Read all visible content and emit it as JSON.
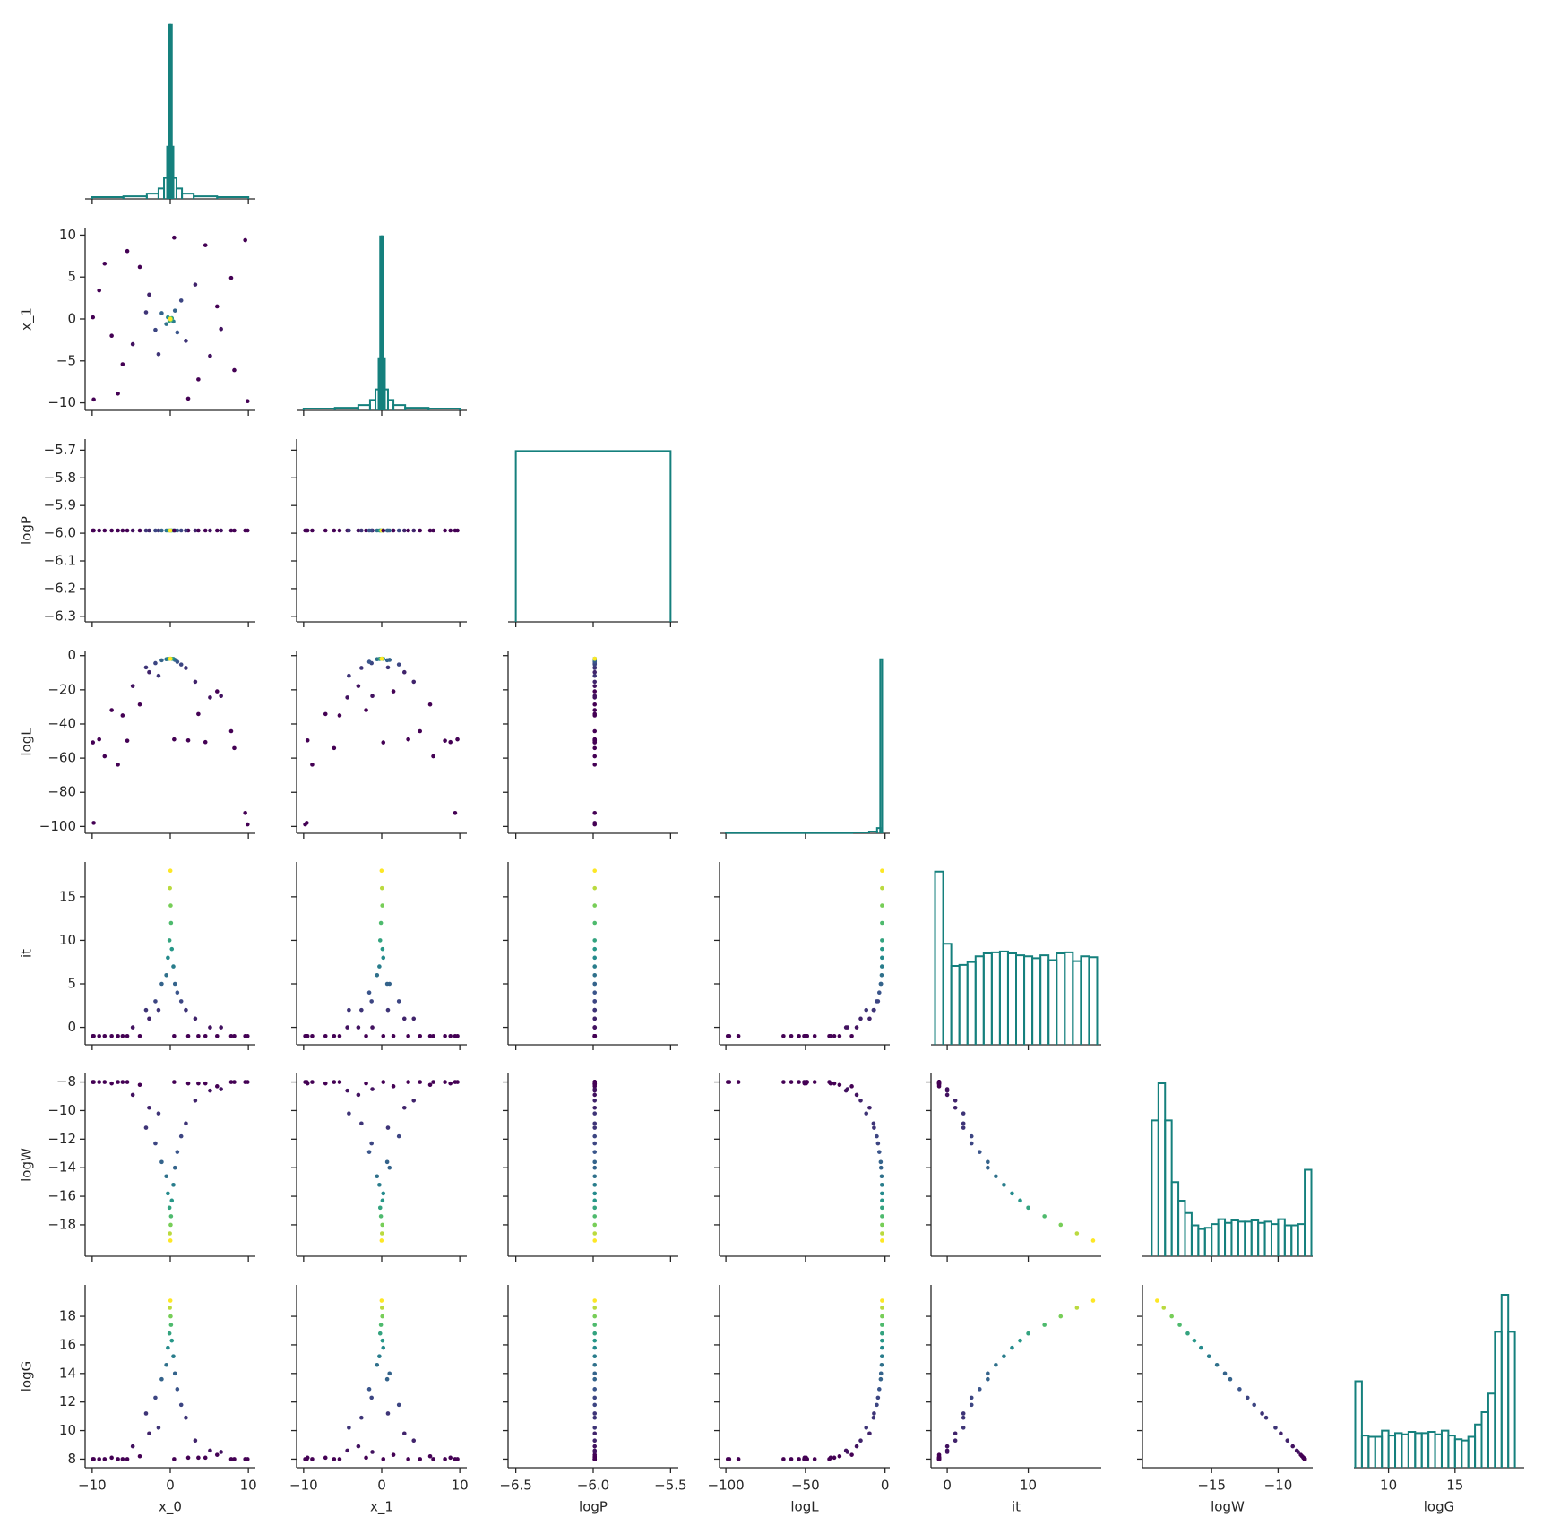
{
  "chart_data": {
    "type": "pairplot",
    "color_by": "it",
    "colormap": [
      "#440154",
      "#3b528b",
      "#21918c",
      "#5ec962",
      "#fde725"
    ],
    "hist_color": "#15807d",
    "variables": [
      {
        "name": "x_0",
        "lim": [
          -10.9,
          10.9
        ],
        "xticks": [
          {
            "value": -10,
            "label": "−10"
          },
          0,
          10
        ],
        "yticks": [
          {
            "value": -10,
            "label": "−10"
          },
          {
            "value": -5,
            "label": "−5"
          },
          0,
          5,
          10
        ],
        "values": [
          8.2,
          -9.1,
          4.5,
          -6.7,
          9.6,
          -9.8,
          2.3,
          -3.9,
          6.0,
          -7.5,
          5.1,
          -4.8,
          3.2,
          -2.7,
          6.5,
          -1.5,
          2.0,
          -3.1,
          1.4,
          -1.9,
          0.9,
          -1.1,
          0.6,
          -0.5,
          0.4,
          -0.3,
          0.2,
          -0.1,
          0.1,
          0.05,
          -0.04,
          0.02,
          7.8,
          -5.5,
          0.5,
          -9.9,
          9.9,
          -8.4,
          3.6,
          -6.1
        ],
        "hist": {
          "bins": [
            -10,
            -6,
            -3,
            -1.5,
            -0.8,
            -0.4,
            -0.2,
            0,
            0.2,
            0.4,
            0.8,
            1.5,
            3,
            6,
            10
          ],
          "counts": [
            1,
            1.5,
            3,
            6,
            12,
            30,
            100,
            100,
            30,
            12,
            6,
            3,
            1.5,
            1
          ],
          "ylim": [
            0,
            105
          ]
        }
      },
      {
        "name": "x_1",
        "lim": [
          -10.9,
          10.9
        ],
        "xticks": [
          {
            "value": -10,
            "label": "−10"
          },
          0,
          10
        ],
        "yticks": [
          {
            "value": -10,
            "label": "−10"
          },
          {
            "value": -5,
            "label": "−5"
          },
          0,
          5,
          10
        ],
        "values": [
          -6.1,
          3.4,
          8.8,
          -8.9,
          9.4,
          -9.6,
          -9.5,
          6.2,
          1.5,
          -2.0,
          -4.4,
          -3.0,
          4.1,
          2.9,
          -1.2,
          -4.2,
          -2.6,
          0.8,
          2.2,
          -1.3,
          -1.6,
          0.7,
          1.0,
          -0.6,
          -0.3,
          0.2,
          0.1,
          -0.2,
          -0.1,
          0.08,
          0.03,
          -0.02,
          4.9,
          8.1,
          9.7,
          0.2,
          -9.8,
          6.6,
          -7.2,
          -5.4
        ],
        "hist": {
          "bins": [
            -10,
            -6,
            -3,
            -1.5,
            -0.8,
            -0.4,
            -0.2,
            0,
            0.2,
            0.4,
            0.8,
            1.5,
            3,
            6,
            10
          ],
          "counts": [
            1,
            1.5,
            3,
            6,
            12,
            30,
            100,
            100,
            30,
            12,
            6,
            3,
            1.5,
            1
          ],
          "ylim": [
            0,
            105
          ]
        }
      },
      {
        "name": "logP",
        "lim": [
          -6.55,
          -5.45
        ],
        "ylim": [
          -6.32,
          -5.66
        ],
        "xticks": [
          {
            "value": -6.5,
            "label": "−6.5"
          },
          {
            "value": -6.0,
            "label": "−6.0"
          },
          {
            "value": -5.5,
            "label": "−5.5"
          }
        ],
        "yticks": [
          {
            "value": -6.3,
            "label": "−6.3"
          },
          {
            "value": -6.2,
            "label": "−6.2"
          },
          {
            "value": -6.1,
            "label": "−6.1"
          },
          {
            "value": -6.0,
            "label": "−6.0"
          },
          {
            "value": -5.9,
            "label": "−5.9"
          },
          {
            "value": -5.8,
            "label": "−5.8"
          },
          {
            "value": -5.7,
            "label": "−5.7"
          }
        ],
        "values": [
          -5.99,
          -5.99,
          -5.99,
          -5.99,
          -5.99,
          -5.99,
          -5.99,
          -5.99,
          -5.99,
          -5.99,
          -5.99,
          -5.99,
          -5.99,
          -5.99,
          -5.99,
          -5.99,
          -5.99,
          -5.99,
          -5.99,
          -5.99,
          -5.99,
          -5.99,
          -5.99,
          -5.99,
          -5.99,
          -5.99,
          -5.99,
          -5.99,
          -5.99,
          -5.99,
          -5.99,
          -5.99,
          -5.99,
          -5.99,
          -5.99,
          -5.99,
          -5.99,
          -5.99,
          -5.99,
          -5.99
        ],
        "hist": {
          "bins": [
            -6.5,
            -5.5
          ],
          "counts": [
            1
          ],
          "ylim": [
            0,
            1.07
          ]
        }
      },
      {
        "name": "logL",
        "lim": [
          -104,
          3
        ],
        "xticks": [
          {
            "value": -100,
            "label": "−100"
          },
          {
            "value": -50,
            "label": "−50"
          },
          0
        ],
        "yticks": [
          {
            "value": -100,
            "label": "−100"
          },
          {
            "value": -80,
            "label": "−80"
          },
          {
            "value": -60,
            "label": "−60"
          },
          {
            "value": -40,
            "label": "−40"
          },
          {
            "value": -20,
            "label": "−20"
          },
          0
        ],
        "values": [
          -54.1,
          -49.0,
          -50.6,
          -63.8,
          -92.1,
          -97.9,
          -49.6,
          -28.6,
          -20.9,
          -31.9,
          -24.5,
          -17.8,
          -15.3,
          -9.7,
          -23.6,
          -11.8,
          -7.2,
          -6.9,
          -5.2,
          -4.4,
          -3.6,
          -2.7,
          -2.5,
          -2.1,
          -1.93,
          -1.88,
          -1.86,
          -1.86,
          -1.85,
          -1.84,
          -1.84,
          -1.84,
          -44.2,
          -49.8,
          -49.0,
          -50.8,
          -98.8,
          -58.9,
          -34.2,
          -35.0
        ],
        "hist": {
          "bins": [
            -100,
            -20,
            -10,
            -5,
            -3,
            -1.8
          ],
          "counts": [
            0.2,
            0.5,
            1,
            3,
            100
          ],
          "ylim": [
            0,
            105
          ]
        }
      },
      {
        "name": "it",
        "lim": [
          -2.0,
          19.0
        ],
        "xticks": [
          0,
          10
        ],
        "yticks": [
          0,
          5,
          10,
          15
        ],
        "values": [
          -1,
          -1,
          -1,
          -1,
          -1,
          -1,
          -1,
          -1,
          -1,
          -1,
          0,
          0,
          1,
          1,
          0,
          2,
          2,
          2,
          3,
          3,
          4,
          5,
          5,
          6,
          7,
          8,
          9,
          10,
          12,
          14,
          16,
          18,
          -1,
          -1,
          -1,
          -1,
          -1,
          -1,
          -1,
          -1
        ],
        "hist": {
          "bins": [
            -1.5,
            -0.5,
            0.5,
            1.5,
            2.5,
            3.5,
            4.5,
            5.5,
            6.5,
            7.5,
            8.5,
            9.5,
            10.5,
            11.5,
            12.5,
            13.5,
            14.5,
            15.5,
            16.5,
            17.5,
            18.5
          ],
          "counts": [
            18,
            10.5,
            8.2,
            8.3,
            8.6,
            9.2,
            9.5,
            9.6,
            9.7,
            9.5,
            9.3,
            9.2,
            9,
            9.3,
            8.8,
            9.5,
            9.6,
            8.7,
            9.2,
            9.1
          ],
          "ylim": [
            0,
            19
          ]
        }
      },
      {
        "name": "logW",
        "lim": [
          -20.2,
          -7.4
        ],
        "xticks": [
          {
            "value": -15,
            "label": "−15"
          },
          {
            "value": -10,
            "label": "−10"
          }
        ],
        "yticks": [
          {
            "value": -18,
            "label": "−18"
          },
          {
            "value": -16,
            "label": "−16"
          },
          {
            "value": -14,
            "label": "−14"
          },
          {
            "value": -12,
            "label": "−12"
          },
          {
            "value": -10,
            "label": "−10"
          },
          {
            "value": -8,
            "label": "−8"
          }
        ],
        "values": [
          -8.0,
          -8.0,
          -8.1,
          -8.0,
          -8.0,
          -8.0,
          -8.1,
          -8.2,
          -8.3,
          -8.1,
          -8.6,
          -8.9,
          -9.3,
          -9.8,
          -8.5,
          -10.2,
          -10.9,
          -11.2,
          -11.8,
          -12.3,
          -12.9,
          -13.6,
          -14.0,
          -14.6,
          -15.2,
          -15.8,
          -16.3,
          -16.8,
          -17.4,
          -18.0,
          -18.6,
          -19.1,
          -8.0,
          -8.0,
          -8.0,
          -8.0,
          -8.0,
          -8.0,
          -8.1,
          -8.0
        ],
        "hist": {
          "bins": [
            -19.5,
            -19,
            -18.5,
            -18,
            -17.5,
            -17,
            -16.5,
            -16,
            -15.5,
            -15,
            -14.5,
            -14,
            -13.5,
            -13,
            -12.5,
            -12,
            -11.5,
            -11,
            -10.5,
            -10,
            -9.5,
            -9,
            -8.5,
            -8,
            -7.5
          ],
          "counts": [
            11,
            14,
            11,
            6,
            4.5,
            3.5,
            2.5,
            2.2,
            2.3,
            2.6,
            3,
            2.7,
            2.9,
            2.8,
            2.8,
            2.9,
            2.7,
            2.8,
            2.6,
            3,
            2.5,
            2.5,
            2.6,
            7
          ],
          "ylim": [
            0,
            14.8
          ]
        }
      },
      {
        "name": "logG",
        "lim": [
          7.4,
          20.2
        ],
        "xticks": [
          10,
          15
        ],
        "yticks": [
          8,
          10,
          12,
          14,
          16,
          18
        ],
        "values": [
          8.0,
          8.0,
          8.1,
          8.0,
          8.0,
          8.0,
          8.1,
          8.2,
          8.3,
          8.1,
          8.6,
          8.9,
          9.3,
          9.8,
          8.5,
          10.2,
          10.9,
          11.2,
          11.8,
          12.3,
          12.9,
          13.6,
          14.0,
          14.6,
          15.2,
          15.8,
          16.3,
          16.8,
          17.4,
          18.0,
          18.6,
          19.1,
          8.0,
          8.0,
          8.0,
          8.0,
          8.0,
          8.0,
          8.1,
          8.0
        ],
        "hist": {
          "bins": [
            7.5,
            8,
            8.5,
            9,
            9.5,
            10,
            10.5,
            11,
            11.5,
            12,
            12.5,
            13,
            13.5,
            14,
            14.5,
            15,
            15.5,
            16,
            16.5,
            17,
            17.5,
            18,
            18.5,
            19,
            19.5
          ],
          "counts": [
            7,
            2.6,
            2.5,
            2.5,
            3,
            2.6,
            2.8,
            2.7,
            2.9,
            2.8,
            2.8,
            2.9,
            2.7,
            3,
            2.6,
            2.3,
            2.2,
            2.5,
            3.5,
            4.5,
            6,
            11,
            14,
            11
          ],
          "ylim": [
            0,
            14.8
          ]
        }
      }
    ]
  }
}
